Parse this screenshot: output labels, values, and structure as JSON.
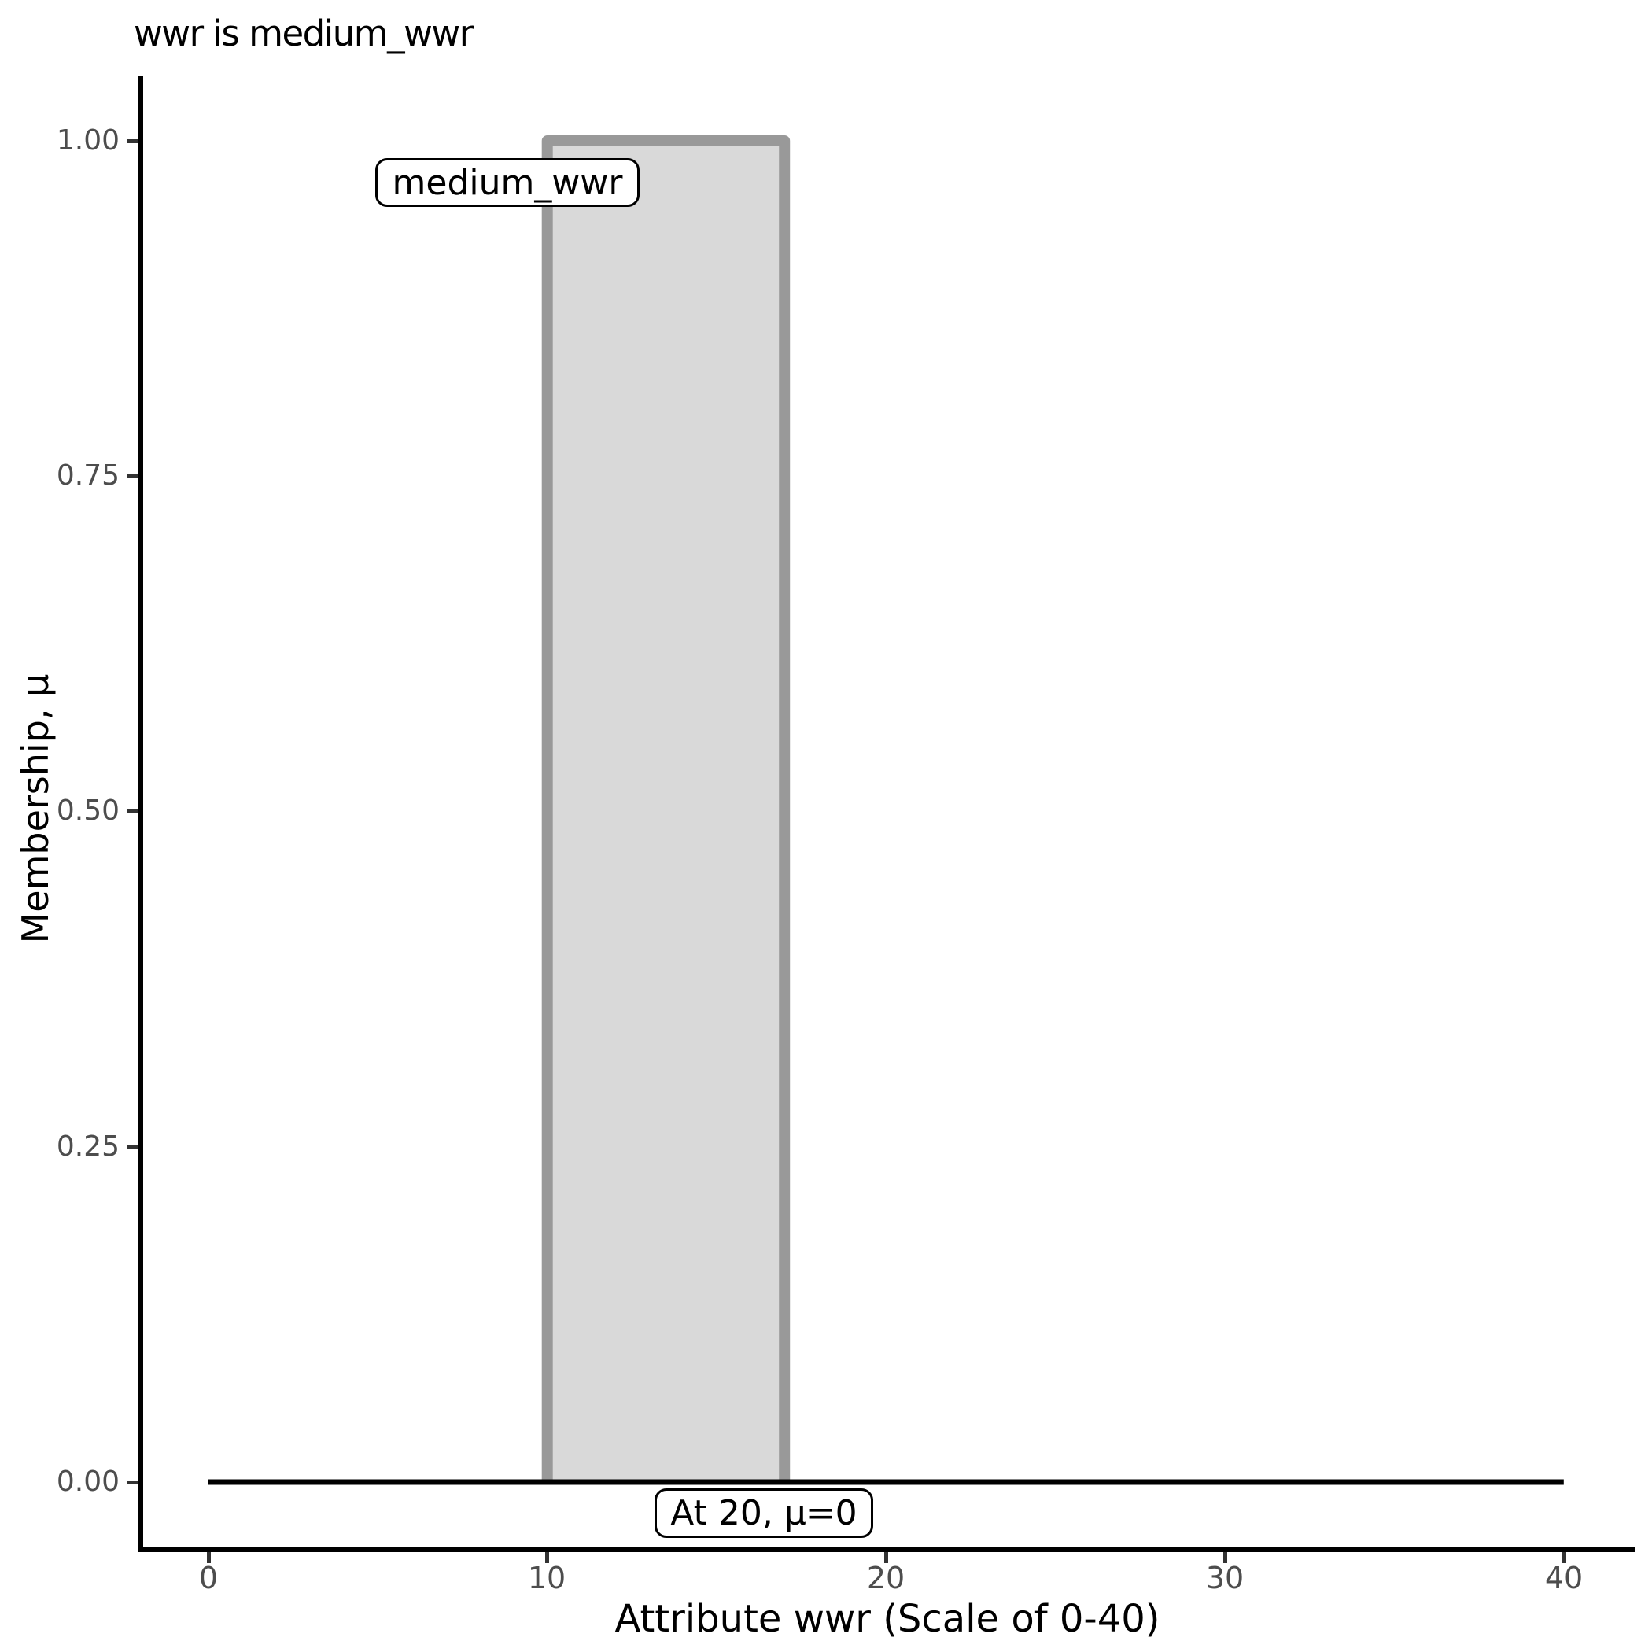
{
  "title": "wwr is medium_wwr",
  "axes": {
    "x": {
      "title": "Attribute wwr (Scale of 0-40)",
      "tick_labels": [
        "0",
        "10",
        "20",
        "30",
        "40"
      ]
    },
    "y": {
      "title": "Membership, μ",
      "tick_labels": [
        "1.00",
        "0.75",
        "0.50",
        "0.25",
        "0.00"
      ]
    }
  },
  "annotations": [
    {
      "text": "medium_wwr"
    },
    {
      "text": "At 20, μ=0"
    }
  ],
  "colors": {
    "membership_fill": "#d9d9d9",
    "membership_stroke": "#999999",
    "baseline_stroke": "#000000",
    "axis_line": "#000000",
    "tick_label": "#4d4d4d"
  },
  "chart_data": {
    "type": "line",
    "title": "wwr is medium_wwr",
    "xlabel": "Attribute wwr (Scale of 0-40)",
    "ylabel": "Membership, μ",
    "xlim": [
      0,
      40
    ],
    "ylim": [
      0,
      1
    ],
    "x_ticks": [
      0,
      10,
      20,
      30,
      40
    ],
    "y_ticks": [
      1.0,
      0.75,
      0.5,
      0.25,
      0.0
    ],
    "grid": false,
    "legend": false,
    "series": [
      {
        "name": "medium_wwr membership function",
        "shape": "trapezoid-outline",
        "x": [
          10,
          10,
          17,
          17
        ],
        "y": [
          0,
          1,
          1,
          0
        ],
        "stroke": "#999999",
        "fill": "#d9d9d9",
        "stroke_width": 14
      },
      {
        "name": "zero membership baseline",
        "shape": "line",
        "x": [
          0,
          40
        ],
        "y": [
          0,
          0
        ],
        "stroke": "#000000",
        "stroke_width": 7
      }
    ],
    "annotations": [
      {
        "text": "medium_wwr",
        "note": "label box overlapping left shoulder of set, near μ=1"
      },
      {
        "text": "At 20, μ=0",
        "note": "label box just below zero line near x=16-20"
      }
    ]
  }
}
